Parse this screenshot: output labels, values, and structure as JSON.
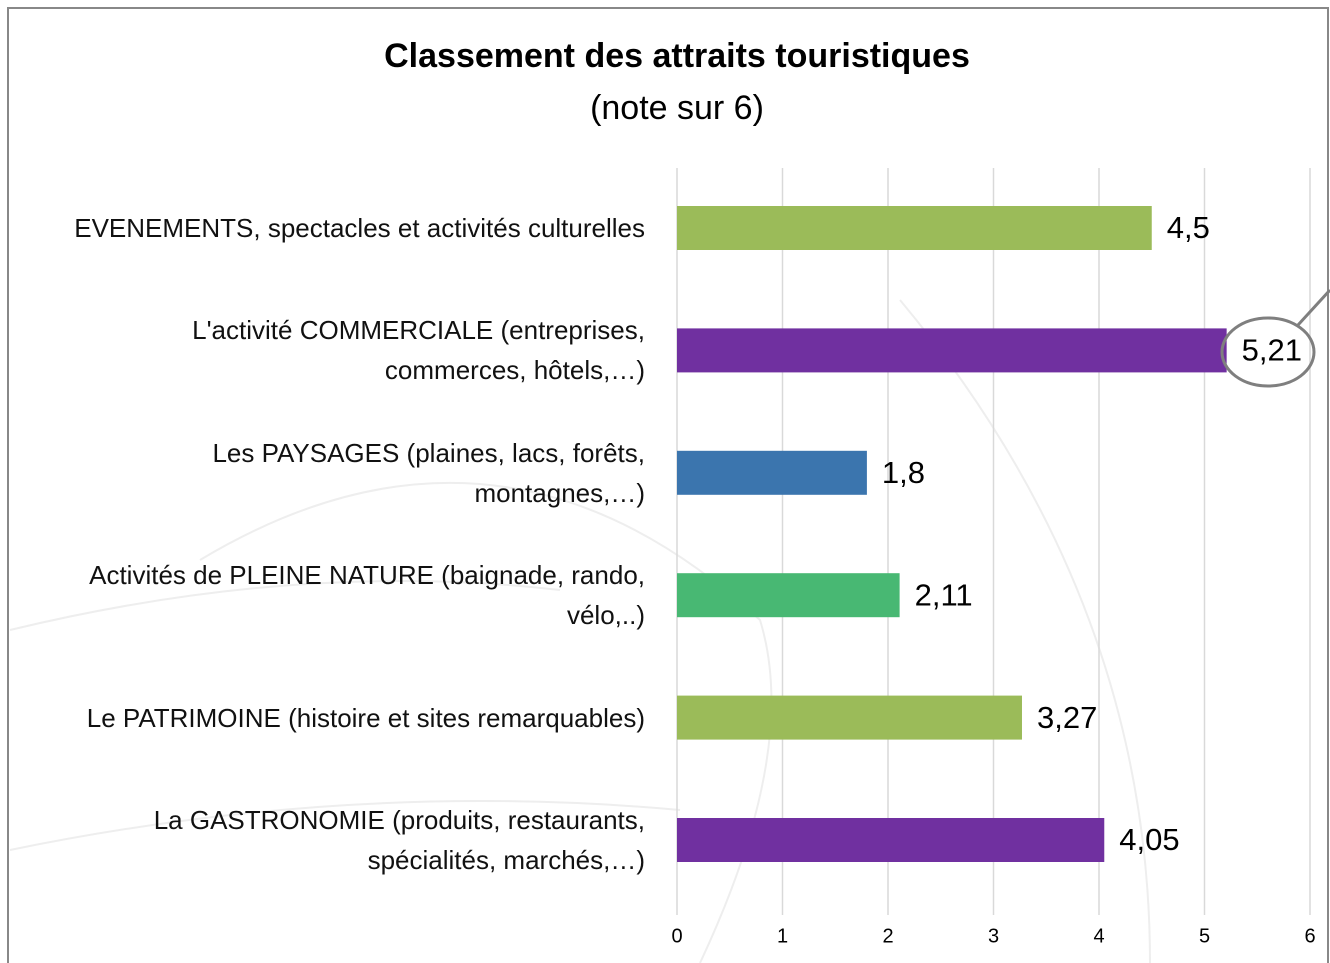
{
  "chart_data": {
    "type": "bar",
    "orientation": "horizontal",
    "title": "Classement des attraits touristiques",
    "subtitle": "(note sur 6)",
    "categories": [
      "EVENEMENTS, spectacles et activités culturelles",
      "L'activité COMMERCIALE (entreprises,\ncommerces, hôtels,…)",
      "Les PAYSAGES (plaines, lacs, forêts,\nmontagnes,…)",
      "Activités de PLEINE NATURE (baignade, rando,\nvélo,..)",
      "Le PATRIMOINE (histoire et sites remarquables)",
      "La GASTRONOMIE (produits, restaurants,\nspécialités, marchés,…)"
    ],
    "values": [
      4.5,
      5.21,
      1.8,
      2.11,
      3.27,
      4.05
    ],
    "value_labels": [
      "4,5",
      "5,21",
      "1,8",
      "2,11",
      "3,27",
      "4,05"
    ],
    "colors": [
      "#9bbb59",
      "#7030a0",
      "#3b75ae",
      "#48b873",
      "#9bbb59",
      "#7030a0"
    ],
    "xlim": [
      0,
      6
    ],
    "xticks": [
      0,
      1,
      2,
      3,
      4,
      5,
      6
    ],
    "grid": true
  }
}
